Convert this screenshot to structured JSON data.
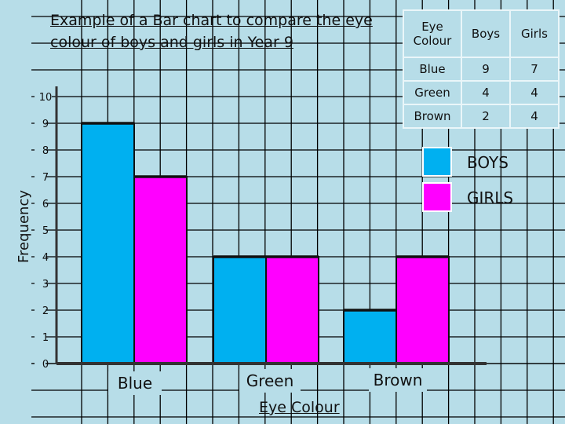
{
  "title": "Example of a Bar chart to compare the eye colour of boys and girls in Year 9",
  "chart_data": {
    "type": "bar",
    "categories": [
      "Blue",
      "Green",
      "Brown"
    ],
    "series": [
      {
        "name": "BOYS",
        "values": [
          9,
          4,
          2
        ],
        "color": "#00b0f0"
      },
      {
        "name": "GIRLS",
        "values": [
          7,
          4,
          4
        ],
        "color": "#ff00ff"
      }
    ],
    "xlabel": "Eye Colour",
    "ylabel": "Frequency",
    "ylim": [
      0,
      10
    ],
    "yticks": [
      "0",
      "1",
      "2",
      "3",
      "4",
      "5",
      "6",
      "7",
      "8",
      "9",
      "10"
    ],
    "grid": true,
    "legend": "right"
  },
  "table": {
    "headers": [
      "Eye Colour",
      "Boys",
      "Girls"
    ],
    "rows": [
      [
        "Blue",
        "9",
        "7"
      ],
      [
        "Green",
        "4",
        "4"
      ],
      [
        "Brown",
        "2",
        "4"
      ]
    ]
  },
  "colors": {
    "background": "#b7dde8",
    "boys": "#00b0f0",
    "girls": "#ff00ff",
    "grid": "#000000"
  }
}
